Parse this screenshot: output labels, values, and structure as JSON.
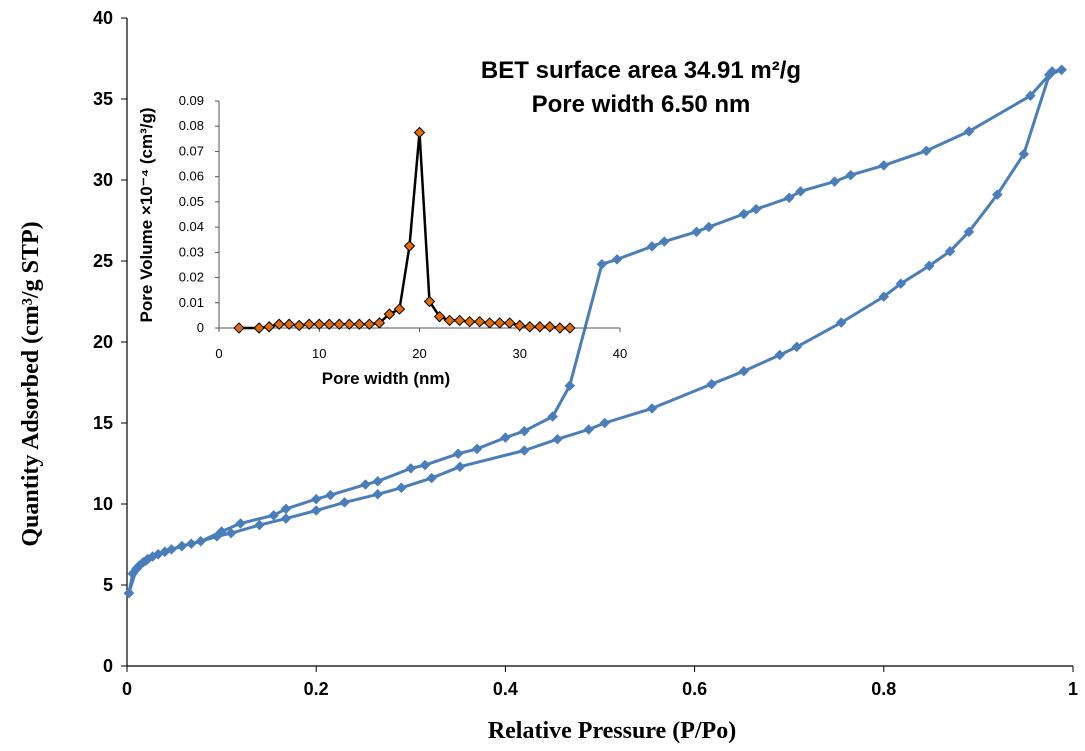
{
  "chart_data": [
    {
      "type": "line",
      "xlabel": "Relative Pressure (P/Po)",
      "ylabel": "Quantity Adsorbed (cm³/g STP)",
      "xlim": [
        0,
        1
      ],
      "ylim": [
        0,
        40
      ],
      "x_ticks": [
        "0",
        "0.2",
        "0.4",
        "0.6",
        "0.8",
        "1"
      ],
      "y_ticks": [
        "0",
        "5",
        "10",
        "15",
        "20",
        "25",
        "30",
        "35",
        "40"
      ],
      "annotations": [
        "BET surface area 34.91 m²/g",
        "Pore width 6.50 nm"
      ],
      "line_color": "#4a7ebb",
      "series": [
        {
          "x": [
            0.002,
            0.006,
            0.01,
            0.013,
            0.017,
            0.022,
            0.027,
            0.033,
            0.04,
            0.047,
            0.058,
            0.068,
            0.078,
            0.1,
            0.12,
            0.155,
            0.168,
            0.2,
            0.215,
            0.252,
            0.265,
            0.3,
            0.315,
            0.35,
            0.37,
            0.4,
            0.42,
            0.45,
            0.468,
            0.502,
            0.518,
            0.555,
            0.568,
            0.602,
            0.615,
            0.652,
            0.665,
            0.7,
            0.712,
            0.748,
            0.765,
            0.8,
            0.845,
            0.89,
            0.955,
            0.978,
            0.988
          ],
          "y": [
            4.5,
            5.7,
            6.0,
            6.2,
            6.4,
            6.6,
            6.75,
            6.9,
            7.05,
            7.2,
            7.4,
            7.55,
            7.7,
            8.3,
            8.8,
            9.3,
            9.7,
            10.3,
            10.55,
            11.2,
            11.4,
            12.2,
            12.4,
            13.1,
            13.4,
            14.1,
            14.5,
            15.4,
            17.3,
            24.8,
            25.1,
            25.9,
            26.2,
            26.8,
            27.1,
            27.9,
            28.2,
            28.9,
            29.3,
            29.9,
            30.3,
            30.9,
            31.8,
            33.0,
            35.2,
            36.7,
            36.8
          ]
        },
        {
          "x": [
            0.002,
            0.01,
            0.02,
            0.04,
            0.058,
            0.078,
            0.095,
            0.11,
            0.14,
            0.168,
            0.2,
            0.23,
            0.265,
            0.29,
            0.322,
            0.352,
            0.42,
            0.455,
            0.488,
            0.505,
            0.555,
            0.618,
            0.652,
            0.69,
            0.708,
            0.755,
            0.8,
            0.818,
            0.848,
            0.87,
            0.89,
            0.92,
            0.948,
            0.975,
            0.988
          ],
          "y": [
            4.5,
            6.0,
            6.5,
            7.05,
            7.4,
            7.7,
            8.0,
            8.2,
            8.7,
            9.1,
            9.6,
            10.1,
            10.6,
            11.0,
            11.6,
            12.3,
            13.3,
            14.0,
            14.6,
            15.0,
            15.9,
            17.4,
            18.2,
            19.2,
            19.7,
            21.2,
            22.8,
            23.6,
            24.7,
            25.6,
            26.8,
            29.1,
            31.6,
            36.5,
            36.8
          ]
        }
      ]
    },
    {
      "type": "line",
      "xlabel": "Pore width (nm)",
      "ylabel": "Pore Volume ×10⁻⁴ (cm³/g)",
      "xlim": [
        0,
        40
      ],
      "ylim": [
        0,
        0.09
      ],
      "x_ticks": [
        "0",
        "10",
        "20",
        "30",
        "40"
      ],
      "y_ticks": [
        "0",
        "0.01",
        "0.02",
        "0.03",
        "0.04",
        "0.05",
        "0.06",
        "0.07",
        "0.08",
        "0.09"
      ],
      "line_color": "#000000",
      "marker_color": "#e36c09",
      "x": [
        2,
        4,
        5,
        6,
        7,
        8,
        9,
        10,
        11,
        12,
        13,
        14,
        15,
        16,
        17,
        18,
        19,
        20,
        21,
        22,
        23,
        24,
        25,
        26,
        27,
        28,
        29,
        30,
        31,
        32,
        33,
        34,
        35
      ],
      "y": [
        0.0,
        0.0,
        0.0005,
        0.0015,
        0.0015,
        0.001,
        0.0015,
        0.0015,
        0.0015,
        0.0015,
        0.0015,
        0.0015,
        0.0015,
        0.002,
        0.0055,
        0.0075,
        0.0325,
        0.0775,
        0.0105,
        0.0045,
        0.003,
        0.003,
        0.0025,
        0.0025,
        0.002,
        0.002,
        0.002,
        0.001,
        0.0005,
        0.0005,
        0.0005,
        0.0,
        0.0
      ]
    }
  ]
}
